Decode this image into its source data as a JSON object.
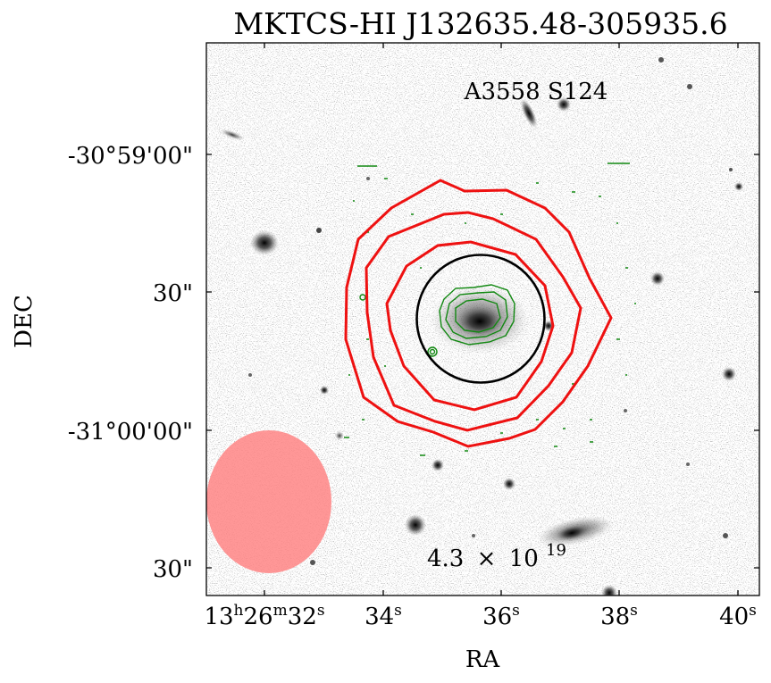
{
  "title": "MKTCS-HI J132635.48-305935.6",
  "galaxy_label": "A3558 S124",
  "contour_annotation": {
    "mantissa": "4.3",
    "times": "×",
    "base": "10",
    "exponent": "19"
  },
  "axes": {
    "xlabel": "RA",
    "ylabel": "DEC",
    "x_ticks": [
      {
        "main": "13",
        "h": "h",
        "m_num": "26",
        "m": "m",
        "s_num": "32",
        "s": "s"
      },
      {
        "s_num": "34",
        "s": "s"
      },
      {
        "s_num": "36",
        "s": "s"
      },
      {
        "s_num": "38",
        "s": "s"
      },
      {
        "s_num": "40",
        "s": "s"
      }
    ],
    "y_ticks": [
      "-30°59'00\"",
      "30\"",
      "-31°00'00\"",
      "30\""
    ]
  },
  "colors": {
    "hi_contours": "#ee1111",
    "optical_contours": "#118811",
    "aperture_circle": "#000000",
    "beam_ellipse": "#ff8080"
  },
  "image_content": "optical-grayscale-galaxy-field"
}
